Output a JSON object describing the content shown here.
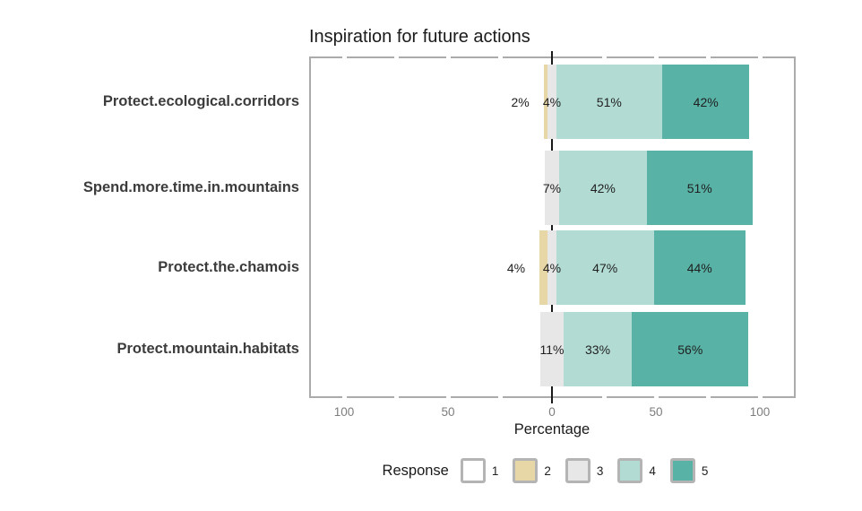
{
  "title": "Inspiration for future actions",
  "xlabel": "Percentage",
  "legend": {
    "label": "Response",
    "items": [
      {
        "value": "1",
        "color": "#ffffff"
      },
      {
        "value": "2",
        "color": "#e8d7a6"
      },
      {
        "value": "3",
        "color": "#e7e7e7"
      },
      {
        "value": "4",
        "color": "#b2dcd3"
      },
      {
        "value": "5",
        "color": "#58b2a6"
      }
    ]
  },
  "colors": {
    "panel_border": "#ababab",
    "zero_line": "#1a1a1a",
    "axis_text": "#7d7d7d",
    "category_text": "#3c3c3c",
    "bar_label_text": "#1f1f1f",
    "legend_swatch_border": "#b4b4b4"
  },
  "chart_data": {
    "type": "bar",
    "subtype": "diverging-stacked-likert",
    "title": "Inspiration for future actions",
    "xlabel": "Percentage",
    "ylabel": "",
    "legend_title": "Response",
    "legend_position": "bottom",
    "grid": false,
    "units": "%",
    "categories": [
      "Protect.ecological.corridors",
      "Spend.more.time.in.mountains",
      "Protect.the.chamois",
      "Protect.mountain.habitats"
    ],
    "series": [
      {
        "name": "1",
        "color": "#ffffff",
        "side": "left",
        "values": [
          0,
          0,
          0,
          0
        ]
      },
      {
        "name": "2",
        "color": "#e8d7a6",
        "side": "left",
        "values": [
          2,
          0,
          4,
          0
        ]
      },
      {
        "name": "3",
        "color": "#e7e7e7",
        "side": "neutral",
        "values": [
          4,
          7,
          4,
          11
        ]
      },
      {
        "name": "4",
        "color": "#b2dcd3",
        "side": "right",
        "values": [
          51,
          42,
          47,
          33
        ]
      },
      {
        "name": "5",
        "color": "#58b2a6",
        "side": "right",
        "values": [
          42,
          51,
          44,
          56
        ]
      }
    ],
    "value_label_format": "{v}%",
    "x_ticks": [
      {
        "label": "100",
        "value": -100
      },
      {
        "label": "50",
        "value": -50
      },
      {
        "label": "0",
        "value": 0
      },
      {
        "label": "50",
        "value": 50
      },
      {
        "label": "100",
        "value": 100
      }
    ],
    "minor_tick_step": 25,
    "xlim": [
      -117,
      117
    ]
  }
}
